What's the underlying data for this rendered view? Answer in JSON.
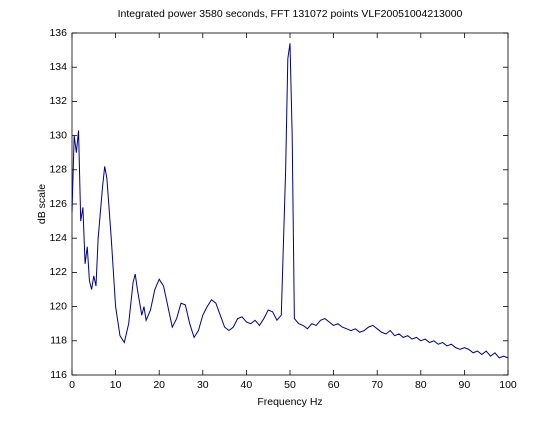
{
  "chart_data": {
    "type": "line",
    "title": "Integrated power 3580 seconds, FFT 131072 points VLF20051004213000",
    "xlabel": "Frequency Hz",
    "ylabel": "dB scale",
    "x": [
      0,
      0.5,
      1,
      1.5,
      2,
      2.5,
      3,
      3.5,
      4,
      4.5,
      5,
      5.5,
      6,
      7,
      7.5,
      8,
      9,
      10,
      11,
      12,
      13,
      14,
      14.5,
      15,
      16,
      16.5,
      17,
      18,
      19,
      20,
      21,
      22,
      23,
      24,
      25,
      26,
      27,
      28,
      29,
      30,
      31,
      32,
      33,
      34,
      35,
      36,
      37,
      38,
      39,
      40,
      41,
      42,
      43,
      44,
      45,
      46,
      47,
      48,
      49,
      49.5,
      50,
      50.5,
      51,
      52,
      53,
      54,
      55,
      56,
      57,
      58,
      59,
      60,
      61,
      62,
      63,
      64,
      65,
      66,
      67,
      68,
      69,
      70,
      71,
      72,
      73,
      74,
      75,
      76,
      77,
      78,
      79,
      80,
      81,
      82,
      83,
      84,
      85,
      86,
      87,
      88,
      89,
      90,
      91,
      92,
      93,
      94,
      95,
      96,
      97,
      98,
      99,
      100
    ],
    "series": [
      {
        "color": "#00008b",
        "values": [
          125.5,
          130,
          129,
          130.3,
          125,
          125.8,
          122.5,
          123.5,
          121.5,
          121,
          121.8,
          121.2,
          124,
          127,
          128.2,
          127.5,
          124,
          120,
          118.3,
          117.9,
          119,
          121.4,
          121.9,
          121,
          119.5,
          120,
          119.2,
          119.8,
          121,
          121.6,
          121.2,
          120,
          118.8,
          119.3,
          120.2,
          120.1,
          119,
          118.2,
          118.6,
          119.5,
          120,
          120.4,
          120.2,
          119.5,
          118.8,
          118.6,
          118.8,
          119.3,
          119.4,
          119.1,
          119,
          119.2,
          118.9,
          119.3,
          119.8,
          119.7,
          119.2,
          119.5,
          128,
          134.5,
          135.4,
          130,
          119.3,
          119,
          118.9,
          118.7,
          119,
          118.9,
          119.2,
          119.3,
          119.1,
          118.9,
          119,
          118.8,
          118.7,
          118.6,
          118.7,
          118.5,
          118.6,
          118.8,
          118.9,
          118.7,
          118.5,
          118.4,
          118.6,
          118.3,
          118.4,
          118.2,
          118.3,
          118.1,
          118.2,
          118,
          118.1,
          117.9,
          118,
          117.8,
          117.9,
          117.7,
          117.8,
          117.6,
          117.5,
          117.6,
          117.5,
          117.3,
          117.4,
          117.2,
          117.4,
          117.1,
          117.3,
          117,
          117.1,
          117
        ]
      }
    ],
    "xlim": [
      0,
      100
    ],
    "xticks": [
      0,
      10,
      20,
      30,
      40,
      50,
      60,
      70,
      80,
      90,
      100
    ],
    "ylim": [
      116,
      136
    ],
    "yticks": [
      116,
      118,
      120,
      122,
      124,
      126,
      128,
      130,
      132,
      134,
      136
    ],
    "grid": false
  }
}
